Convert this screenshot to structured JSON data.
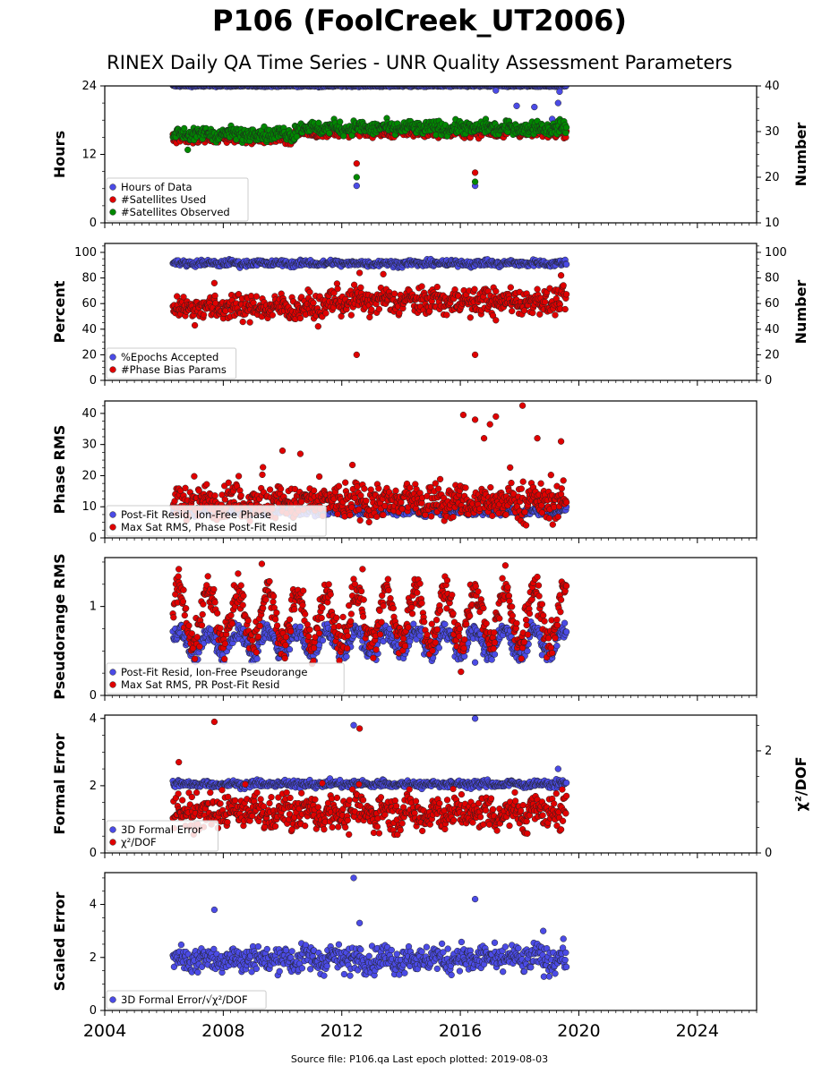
{
  "title": "P106 (FoolCreek_UT2006)",
  "subtitle": "RINEX Daily QA Time Series - UNR Quality Assessment Parameters",
  "source_text": "Source file: P106.qa Last epoch plotted: 2019-08-03",
  "chart_data": {
    "type": "scatter",
    "x_axis": {
      "range": [
        2004,
        2026
      ],
      "ticks": [
        2004,
        2008,
        2012,
        2016,
        2020,
        2024
      ],
      "tick_labels": [
        "2004",
        "2008",
        "2012",
        "2016",
        "2020",
        "2024"
      ]
    },
    "panels": [
      {
        "id": "hours",
        "ylabel": "Hours",
        "ylim": [
          0,
          24
        ],
        "yticks": [
          0,
          12,
          24
        ],
        "ytick_labels": [
          "0",
          "12",
          "24"
        ],
        "y2label": "Number",
        "y2lim": [
          10,
          40
        ],
        "y2ticks": [
          10,
          20,
          30,
          40
        ],
        "y2tick_labels": [
          "10",
          "20",
          "30",
          "40"
        ],
        "legend": "lower-left",
        "series": [
          {
            "name": "Hours of Data",
            "color": "#4b4be6",
            "axis": "left",
            "gen": {
              "base": 24,
              "amp": 0,
              "noise": 0.08,
              "spikes": 0.005
            },
            "points": [
              [
                2012.5,
                6.5
              ],
              [
                2016.5,
                6.5
              ],
              [
                2017.2,
                23.2
              ],
              [
                2017.9,
                20.5
              ],
              [
                2018.5,
                20.3
              ],
              [
                2019.1,
                18.2
              ],
              [
                2019.3,
                21
              ],
              [
                2019.35,
                23
              ]
            ]
          },
          {
            "name": "#Satellites Used",
            "color": "#e00000",
            "axis": "right",
            "gen": {
              "base": 28.5,
              "amp": 0.3,
              "noise": 0.5,
              "step": [
                [
                  2010.4,
                  29.8
                ]
              ]
            },
            "points": [
              [
                2012.5,
                23
              ],
              [
                2016.5,
                21
              ],
              [
                2009.2,
                30
              ]
            ]
          },
          {
            "name": "#Satellites Observed",
            "color": "#008800",
            "axis": "right",
            "gen": {
              "base": 29.5,
              "amp": 0.6,
              "noise": 0.7,
              "step": [
                [
                  2010.4,
                  30.8
                ]
              ]
            },
            "points": [
              [
                2012.5,
                20
              ],
              [
                2016.5,
                19
              ],
              [
                2006.8,
                26
              ]
            ]
          }
        ]
      },
      {
        "id": "percent",
        "ylabel": "Percent",
        "ylim": [
          0,
          107
        ],
        "yticks": [
          0,
          20,
          40,
          60,
          80,
          100
        ],
        "ytick_labels": [
          "0",
          "20",
          "40",
          "60",
          "80",
          "100"
        ],
        "y2label": "Number",
        "y2lim": [
          0,
          107
        ],
        "y2ticks": [
          0,
          20,
          40,
          60,
          80,
          100
        ],
        "y2tick_labels": [
          "0",
          "20",
          "40",
          "60",
          "80",
          "100"
        ],
        "legend": "lower-left",
        "series": [
          {
            "name": "%Epochs Accepted",
            "color": "#4b4be6",
            "axis": "left",
            "gen": {
              "base": 91.5,
              "amp": 1.2,
              "noise": 1.2
            },
            "points": []
          },
          {
            "name": "#Phase Bias Params",
            "color": "#e00000",
            "axis": "right",
            "gen": {
              "base": 57,
              "amp": 4,
              "noise": 5,
              "step": [
                [
                  2011.5,
                  62
                ]
              ]
            },
            "points": [
              [
                2012.5,
                20
              ],
              [
                2016.5,
                20
              ],
              [
                2007.7,
                76
              ],
              [
                2012.6,
                84
              ],
              [
                2013.4,
                83
              ],
              [
                2017.2,
                47
              ],
              [
                2019.4,
                82
              ]
            ]
          }
        ]
      },
      {
        "id": "phase",
        "ylabel": "Phase RMS",
        "ylim": [
          0,
          44
        ],
        "yticks": [
          0,
          10,
          20,
          30,
          40
        ],
        "ytick_labels": [
          "0",
          "10",
          "20",
          "30",
          "40"
        ],
        "legend": "lower-left",
        "series": [
          {
            "name": "Post-Fit Resid, Ion-Free Phase",
            "color": "#4b4be6",
            "axis": "left",
            "gen": {
              "base": 8.5,
              "amp": 0.8,
              "noise": 0.6
            },
            "points": []
          },
          {
            "name": "Max Sat RMS, Phase Post-Fit Resid",
            "color": "#e00000",
            "axis": "left",
            "gen": {
              "base": 11.5,
              "amp": 2,
              "noise": 2.6,
              "spikes": 0.06,
              "spikeAmp": 10
            },
            "points": [
              [
                2016.1,
                39.5
              ],
              [
                2016.8,
                32
              ],
              [
                2017.0,
                36.5
              ],
              [
                2017.2,
                39
              ],
              [
                2018.1,
                42.5
              ],
              [
                2018.6,
                32
              ],
              [
                2019.4,
                31
              ],
              [
                2016.5,
                38
              ],
              [
                2010.0,
                28
              ],
              [
                2010.6,
                27
              ]
            ]
          }
        ]
      },
      {
        "id": "pseudorange",
        "ylabel": "Pseudorange RMS",
        "ylim": [
          0,
          1.55
        ],
        "yticks": [
          0,
          1
        ],
        "ytick_labels": [
          "0",
          "1"
        ],
        "legend": "lower-left",
        "series": [
          {
            "name": "Post-Fit Resid, Ion-Free Pseudorange",
            "color": "#4b4be6",
            "axis": "left",
            "gen": {
              "base": 0.6,
              "amp": 0.13,
              "noise": 0.05,
              "season": true
            },
            "points": [
              [
                2016.5,
                0.37
              ]
            ]
          },
          {
            "name": "Max Sat RMS, PR Post-Fit Resid",
            "color": "#e00000",
            "axis": "left",
            "gen": {
              "base": 0.88,
              "amp": 0.3,
              "noise": 0.1,
              "season": true
            },
            "points": [
              [
                2009.3,
                1.48
              ],
              [
                2006.5,
                1.42
              ],
              [
                2012.7,
                1.42
              ]
            ]
          }
        ]
      },
      {
        "id": "formal",
        "ylabel": "Formal Error",
        "ylim": [
          0,
          4.1
        ],
        "yticks": [
          0,
          2,
          4
        ],
        "ytick_labels": [
          "0",
          "2",
          "4"
        ],
        "y2label": "χ²/DOF",
        "y2lim": [
          0,
          2.7
        ],
        "y2ticks": [
          0,
          2
        ],
        "y2tick_labels": [
          "0",
          "2"
        ],
        "legend": "lower-left",
        "series": [
          {
            "name": "3D Formal Error",
            "color": "#4b4be6",
            "axis": "left",
            "gen": {
              "base": 2.05,
              "amp": 0.05,
              "noise": 0.05
            },
            "points": [
              [
                2012.4,
                3.8
              ],
              [
                2016.5,
                4.0
              ],
              [
                2019.3,
                2.5
              ]
            ]
          },
          {
            "name": "χ²/DOF",
            "color": "#e00000",
            "axis": "left",
            "gen": {
              "base": 1.2,
              "amp": 0.25,
              "noise": 0.25,
              "spikes": 0.03,
              "spikeAmp": 0.6
            },
            "points": [
              [
                2007.7,
                3.9
              ],
              [
                2012.6,
                3.7
              ],
              [
                2006.5,
                2.7
              ],
              [
                2007.0,
                0.55
              ]
            ]
          }
        ]
      },
      {
        "id": "scaled",
        "ylabel": "Scaled Error",
        "ylim": [
          0,
          5.2
        ],
        "yticks": [
          0,
          2,
          4
        ],
        "ytick_labels": [
          "0",
          "2",
          "4"
        ],
        "legend": "lower-left",
        "series": [
          {
            "name": "3D Formal Error/√χ²/DOF",
            "color": "#4b4be6",
            "axis": "left",
            "gen": {
              "base": 1.95,
              "amp": 0.25,
              "noise": 0.25
            },
            "points": [
              [
                2012.4,
                5.0
              ],
              [
                2016.5,
                4.2
              ],
              [
                2007.7,
                3.8
              ],
              [
                2012.6,
                3.3
              ],
              [
                2018.8,
                3.0
              ]
            ]
          }
        ]
      }
    ]
  }
}
